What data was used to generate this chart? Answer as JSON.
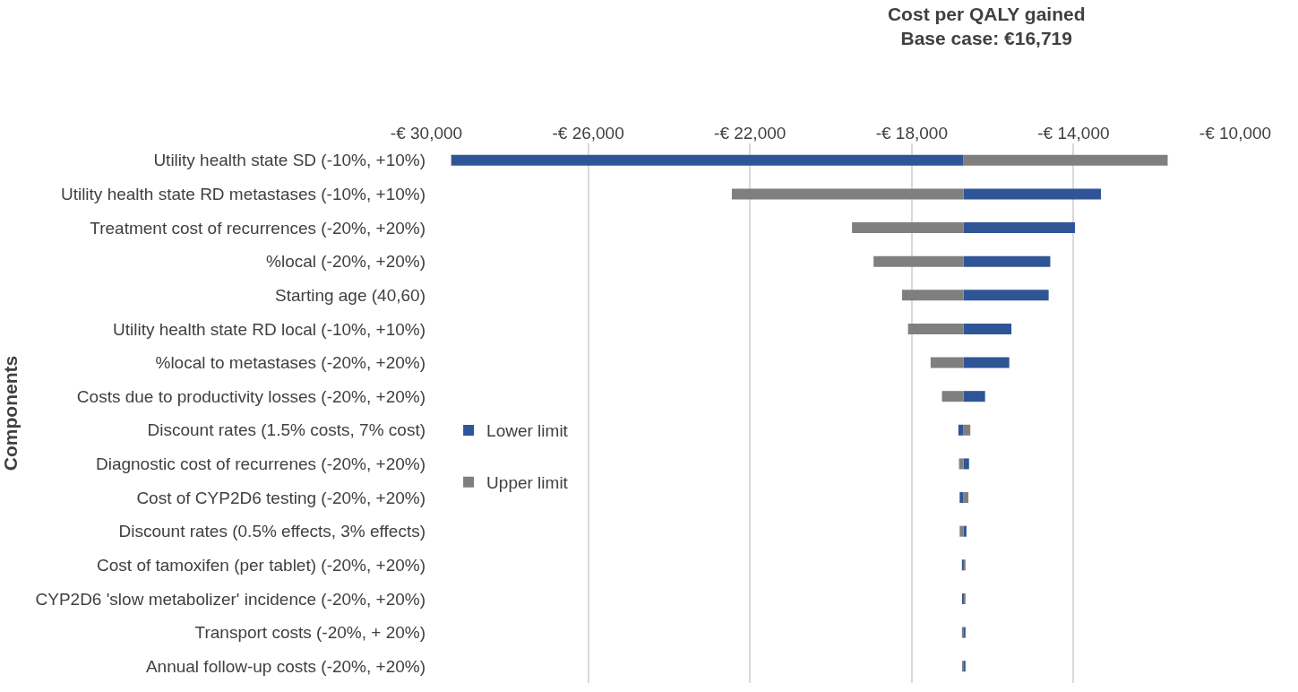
{
  "chart_data": {
    "type": "bar",
    "orientation": "horizontal",
    "title": "Cost per QALY gained",
    "subtitle": "Base case: €16,719",
    "ylabel": "Components",
    "categories": [
      "Utility health state SD (-10%, +10%)",
      "Utility health state RD metastases (-10%, +10%)",
      "Treatment cost of recurrences (-20%, +20%)",
      "%local (-20%, +20%)",
      "Starting age (40,60)",
      "Utility health state RD local (-10%, +10%)",
      "%local to metastases (-20%, +20%)",
      "Costs due to productivity losses (-20%, +20%)",
      "Discount rates (1.5% costs, 7% cost)",
      "Diagnostic cost of recurrenes (-20%, +20%)",
      "Cost of CYP2D6 testing (-20%, +20%)",
      "Discount rates (0.5% effects, 3% effects)",
      "Cost of tamoxifen (per tablet) (-20%, +20%)",
      "CYP2D6 'slow metabolizer' incidence (-20%, +20%)",
      "Transport costs (-20%, + 20%)",
      "Annual follow-up costs (-20%, +20%)"
    ],
    "series": [
      {
        "name": "Lower limit",
        "color": "#2f5597",
        "base": [
          -16719,
          -16719,
          -16719,
          -16719,
          -16719,
          -16719,
          -16719,
          -16719,
          -16719,
          -16719,
          -16719,
          -16719,
          -16719,
          -16719,
          -16719,
          -16719
        ],
        "values": [
          -12668,
          3396,
          2756,
          2144,
          2104,
          1184,
          1131,
          532,
          -128,
          136,
          -96,
          72,
          -40,
          -16,
          48,
          48
        ]
      },
      {
        "name": "Upper limit",
        "color": "#7f7f7f",
        "base": [
          -16719,
          -16719,
          -16719,
          -16719,
          -16719,
          -16719,
          -16719,
          -16719,
          -16719,
          -16719,
          -16719,
          -16719,
          -16719,
          -16719,
          -16719,
          -16719
        ],
        "values": [
          5047,
          -5729,
          -2758,
          -2225,
          -1519,
          -1373,
          -814,
          -534,
          168,
          -112,
          120,
          -96,
          48,
          48,
          -40,
          -16
        ]
      }
    ],
    "xlim": [
      -30000,
      -10000
    ],
    "xticks": [
      {
        "value": -30000,
        "label": "-€ 30,000"
      },
      {
        "value": -26000,
        "label": "-€ 26,000"
      },
      {
        "value": -22000,
        "label": "-€ 22,000"
      },
      {
        "value": -18000,
        "label": "-€ 18,000"
      },
      {
        "value": -14000,
        "label": "-€ 14,000"
      },
      {
        "value": -10000,
        "label": "-€ 10,000"
      }
    ],
    "grid": "x",
    "legend": "left"
  }
}
